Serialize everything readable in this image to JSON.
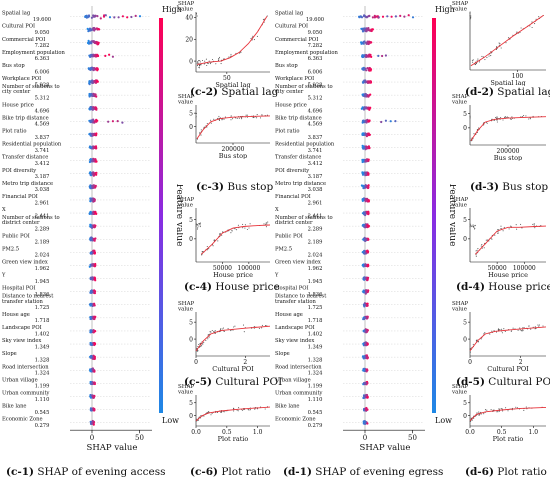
{
  "colorbar": {
    "high": "High",
    "low": "Low",
    "title": "Feature value",
    "color_high": "#ff0052",
    "color_low": "#1e88e5"
  },
  "chart_data": [
    {
      "id": "c1",
      "type": "beeswarm",
      "caption_id": "(c-1)",
      "caption_text": "SHAP of evening access",
      "xlabel": "SHAP value",
      "x_ticks": [
        0,
        50
      ],
      "features": [
        {
          "name": "Spatial lag",
          "value": "19.600"
        },
        {
          "name": "Cultural POI",
          "value": "9.050"
        },
        {
          "name": "Commercial POI",
          "value": "7.282"
        },
        {
          "name": "Employment population",
          "value": "6.363"
        },
        {
          "name": "Bus stop",
          "value": "6.006"
        },
        {
          "name": "Workplace POI",
          "value": "5.928"
        },
        {
          "name": "Number of stations to city center",
          "value": "5.312"
        },
        {
          "name": "House price",
          "value": "4.696"
        },
        {
          "name": "Bike trip distance",
          "value": "4.569"
        },
        {
          "name": "Plot ratio",
          "value": "3.837"
        },
        {
          "name": "Residential population",
          "value": "3.741"
        },
        {
          "name": "Transfer distance",
          "value": "3.412"
        },
        {
          "name": "POI diversity",
          "value": "3.187"
        },
        {
          "name": "Metro trip distance",
          "value": "3.038"
        },
        {
          "name": "Financial POI",
          "value": "2.961"
        },
        {
          "name": "X",
          "value": "2.441"
        },
        {
          "name": "Number of stations to district center",
          "value": "2.289"
        },
        {
          "name": "Public POI",
          "value": "2.189"
        },
        {
          "name": "PM2.5",
          "value": "2.024"
        },
        {
          "name": "Green view index",
          "value": "1.962"
        },
        {
          "name": "Y",
          "value": "1.945"
        },
        {
          "name": "Hospital POI",
          "value": "1.836"
        },
        {
          "name": "Distance to nearest transfer station",
          "value": "1.725"
        },
        {
          "name": "House age",
          "value": "1.718"
        },
        {
          "name": "Landscape POI",
          "value": "1.402"
        },
        {
          "name": "Sky view index",
          "value": "1.349"
        },
        {
          "name": "Slope",
          "value": "1.328"
        },
        {
          "name": "Road intersection",
          "value": "1.324"
        },
        {
          "name": "Urban village",
          "value": "1.199"
        },
        {
          "name": "Urban community",
          "value": "1.110"
        },
        {
          "name": "Bike lane",
          "value": "0.545"
        },
        {
          "name": "Economic Zone",
          "value": "0.279"
        }
      ]
    },
    {
      "id": "d1",
      "type": "beeswarm",
      "caption_id": "(d-1)",
      "caption_text": "SHAP of evening egress",
      "xlabel": "SHAP value",
      "x_ticks": [
        0,
        50
      ],
      "features": [
        {
          "name": "Spatial lag",
          "value": "19.600"
        },
        {
          "name": "Cultural POI",
          "value": "9.050"
        },
        {
          "name": "Commercial POI",
          "value": "7.282"
        },
        {
          "name": "Employment population",
          "value": "6.363"
        },
        {
          "name": "Bus stop",
          "value": "6.006"
        },
        {
          "name": "Workplace POI",
          "value": "5.928"
        },
        {
          "name": "Number of stations to city center",
          "value": "5.312"
        },
        {
          "name": "House price",
          "value": "4.696"
        },
        {
          "name": "Bike trip distance",
          "value": "4.569"
        },
        {
          "name": "Plot ratio",
          "value": "3.837"
        },
        {
          "name": "Residential population",
          "value": "3.741"
        },
        {
          "name": "Transfer distance",
          "value": "3.412"
        },
        {
          "name": "POI diversity",
          "value": "3.187"
        },
        {
          "name": "Metro trip distance",
          "value": "3.038"
        },
        {
          "name": "Financial POI",
          "value": "2.961"
        },
        {
          "name": "X",
          "value": "2.441"
        },
        {
          "name": "Number of stations to district center",
          "value": "2.289"
        },
        {
          "name": "Public POI",
          "value": "2.189"
        },
        {
          "name": "PM2.5",
          "value": "2.024"
        },
        {
          "name": "Green view index",
          "value": "1.962"
        },
        {
          "name": "Y",
          "value": "1.945"
        },
        {
          "name": "Hospital POI",
          "value": "1.836"
        },
        {
          "name": "Distance to nearest transfer station",
          "value": "1.725"
        },
        {
          "name": "House age",
          "value": "1.718"
        },
        {
          "name": "Landscape POI",
          "value": "1.402"
        },
        {
          "name": "Sky view index",
          "value": "1.349"
        },
        {
          "name": "Slope",
          "value": "1.328"
        },
        {
          "name": "Road intersection",
          "value": "1.324"
        },
        {
          "name": "Urban village",
          "value": "1.199"
        },
        {
          "name": "Urban community",
          "value": "1.110"
        },
        {
          "name": "Bike lane",
          "value": "0.545"
        },
        {
          "name": "Economic Zone",
          "value": "0.279"
        }
      ]
    },
    {
      "id": "c2",
      "type": "scatter",
      "caption_id": "(c-2)",
      "caption_text": "Spatial lag",
      "ylabel": "SHAP value",
      "xlabel": "Spatial lag",
      "xlim": [
        0,
        120
      ],
      "ylim": [
        -10,
        45
      ],
      "x_ticks": [
        {
          "v": 50,
          "label": "50"
        }
      ],
      "y_ticks": [
        {
          "v": 0,
          "label": "0"
        },
        {
          "v": 20,
          "label": "20"
        },
        {
          "v": 40,
          "label": "40"
        }
      ],
      "trend": [
        [
          2,
          -3
        ],
        [
          20,
          -1
        ],
        [
          40,
          0
        ],
        [
          55,
          3
        ],
        [
          70,
          8
        ],
        [
          85,
          16
        ],
        [
          100,
          27
        ],
        [
          115,
          41
        ]
      ]
    },
    {
      "id": "c3",
      "type": "scatter",
      "caption_id": "(c-3)",
      "caption_text": "Bus stop",
      "ylabel": "SHAP value",
      "xlabel": "Bus stop",
      "xlim": [
        0,
        400000
      ],
      "ylim": [
        -6,
        8
      ],
      "x_ticks": [
        {
          "v": 200000,
          "label": "200000"
        }
      ],
      "y_ticks": [
        {
          "v": 0,
          "label": "0"
        },
        {
          "v": 5,
          "label": "5"
        }
      ],
      "trend": [
        [
          5000,
          -4.5
        ],
        [
          40000,
          -1
        ],
        [
          80000,
          1.8
        ],
        [
          130000,
          3
        ],
        [
          200000,
          3.5
        ],
        [
          300000,
          3.8
        ],
        [
          400000,
          4
        ]
      ]
    },
    {
      "id": "c4",
      "type": "scatter",
      "caption_id": "(c-4)",
      "caption_text": "House price",
      "ylabel": "SHAP value",
      "xlabel": "House price",
      "xlim": [
        0,
        140000
      ],
      "ylim": [
        -6,
        8
      ],
      "x_ticks": [
        {
          "v": 50000,
          "label": "50000"
        },
        {
          "v": 100000,
          "label": "100000"
        }
      ],
      "y_ticks": [
        {
          "v": 0,
          "label": "0"
        },
        {
          "v": 5,
          "label": "5"
        }
      ],
      "trend": [
        [
          10000,
          -4
        ],
        [
          30000,
          -1.5
        ],
        [
          50000,
          1.5
        ],
        [
          70000,
          2.8
        ],
        [
          90000,
          3.2
        ],
        [
          120000,
          3.5
        ],
        [
          140000,
          3.6
        ]
      ]
    },
    {
      "id": "c5",
      "type": "scatter",
      "caption_id": "(c-5)",
      "caption_text": "Cultural POI",
      "ylabel": "SHAP value",
      "xlabel": "Cultural POI",
      "xlim": [
        0,
        3
      ],
      "ylim": [
        -5,
        8
      ],
      "x_ticks": [
        {
          "v": 0,
          "label": "0"
        },
        {
          "v": 2,
          "label": "2"
        }
      ],
      "y_ticks": [
        {
          "v": 0,
          "label": "0"
        },
        {
          "v": 5,
          "label": "5"
        }
      ],
      "trend": [
        [
          0,
          -3.5
        ],
        [
          0.3,
          -0.5
        ],
        [
          0.6,
          1.5
        ],
        [
          1,
          2.5
        ],
        [
          2,
          3.2
        ],
        [
          3,
          3.8
        ]
      ]
    },
    {
      "id": "c6",
      "type": "scatter",
      "caption_id": "(c-6)",
      "caption_text": "Plot ratio",
      "ylabel": "SHAP value",
      "xlabel": "Plot ratio",
      "xlim": [
        0,
        1.2
      ],
      "ylim": [
        -4,
        8
      ],
      "x_ticks": [
        {
          "v": 0,
          "label": "0.0"
        },
        {
          "v": 0.5,
          "label": "0.5"
        },
        {
          "v": 1,
          "label": "1.0"
        }
      ],
      "y_ticks": [
        {
          "v": 0,
          "label": "0"
        },
        {
          "v": 5,
          "label": "5"
        }
      ],
      "trend": [
        [
          0,
          -2
        ],
        [
          0.1,
          0
        ],
        [
          0.2,
          1
        ],
        [
          0.4,
          1.8
        ],
        [
          0.7,
          2.5
        ],
        [
          1,
          3
        ],
        [
          1.2,
          3.3
        ]
      ]
    },
    {
      "id": "d2",
      "type": "scatter",
      "caption_id": "(d-2)",
      "caption_text": "Spatial lag",
      "ylabel": "SHAP value",
      "xlabel": "Spatial lag",
      "xlim": [
        0,
        160
      ],
      "ylim": [
        -10,
        45
      ],
      "x_ticks": [
        {
          "v": 100,
          "label": "100"
        }
      ],
      "y_ticks": [],
      "trend": [
        [
          2,
          -6
        ],
        [
          30,
          2
        ],
        [
          60,
          12
        ],
        [
          90,
          22
        ],
        [
          120,
          31
        ],
        [
          155,
          42
        ]
      ]
    },
    {
      "id": "d3",
      "type": "scatter",
      "caption_id": "(d-3)",
      "caption_text": "Bus stop",
      "ylabel": "SHAP value",
      "xlabel": "Bus stop",
      "xlim": [
        0,
        400000
      ],
      "ylim": [
        -6,
        8
      ],
      "x_ticks": [
        {
          "v": 200000,
          "label": "200000"
        }
      ],
      "y_ticks": [
        {
          "v": 0,
          "label": "0"
        },
        {
          "v": 5,
          "label": "5"
        }
      ],
      "trend": [
        [
          5000,
          -4.5
        ],
        [
          40000,
          -1
        ],
        [
          80000,
          2
        ],
        [
          130000,
          3
        ],
        [
          200000,
          3.4
        ],
        [
          300000,
          3.7
        ],
        [
          400000,
          3.9
        ]
      ]
    },
    {
      "id": "d4",
      "type": "scatter",
      "caption_id": "(d-4)",
      "caption_text": "House price",
      "ylabel": "SHAP value",
      "xlabel": "House price",
      "xlim": [
        0,
        140000
      ],
      "ylim": [
        -6,
        8
      ],
      "x_ticks": [
        {
          "v": 50000,
          "label": "50000"
        },
        {
          "v": 100000,
          "label": "100000"
        }
      ],
      "y_ticks": [
        {
          "v": 0,
          "label": "0"
        },
        {
          "v": 5,
          "label": "5"
        }
      ],
      "trend": [
        [
          10000,
          -4
        ],
        [
          30000,
          -1
        ],
        [
          50000,
          2
        ],
        [
          70000,
          3
        ],
        [
          90000,
          3
        ],
        [
          120000,
          3.2
        ],
        [
          140000,
          3.3
        ]
      ]
    },
    {
      "id": "d5",
      "type": "scatter",
      "caption_id": "(d-5)",
      "caption_text": "Cultural POI",
      "ylabel": "SHAP value",
      "xlabel": "Cultural POI",
      "xlim": [
        0,
        3
      ],
      "ylim": [
        -5,
        8
      ],
      "x_ticks": [
        {
          "v": 0,
          "label": "0"
        },
        {
          "v": 2,
          "label": "2"
        }
      ],
      "y_ticks": [
        {
          "v": 0,
          "label": "0"
        },
        {
          "v": 5,
          "label": "5"
        }
      ],
      "trend": [
        [
          0,
          -3.5
        ],
        [
          0.3,
          -0.5
        ],
        [
          0.6,
          1.5
        ],
        [
          1,
          2.3
        ],
        [
          2,
          3
        ],
        [
          3,
          3.6
        ]
      ]
    },
    {
      "id": "d6",
      "type": "scatter",
      "caption_id": "(d-6)",
      "caption_text": "Plot ratio",
      "ylabel": "SHAP value",
      "xlabel": "Plot ratio",
      "xlim": [
        0,
        1.2
      ],
      "ylim": [
        -4,
        8
      ],
      "x_ticks": [
        {
          "v": 0,
          "label": "0.0"
        },
        {
          "v": 0.5,
          "label": "0.5"
        },
        {
          "v": 1,
          "label": "1.0"
        }
      ],
      "y_ticks": [
        {
          "v": 0,
          "label": "0"
        },
        {
          "v": 5,
          "label": "5"
        }
      ],
      "trend": [
        [
          0,
          -2
        ],
        [
          0.1,
          0.5
        ],
        [
          0.25,
          1.5
        ],
        [
          0.5,
          2.2
        ],
        [
          0.8,
          2.8
        ],
        [
          1.2,
          3.2
        ]
      ]
    }
  ]
}
